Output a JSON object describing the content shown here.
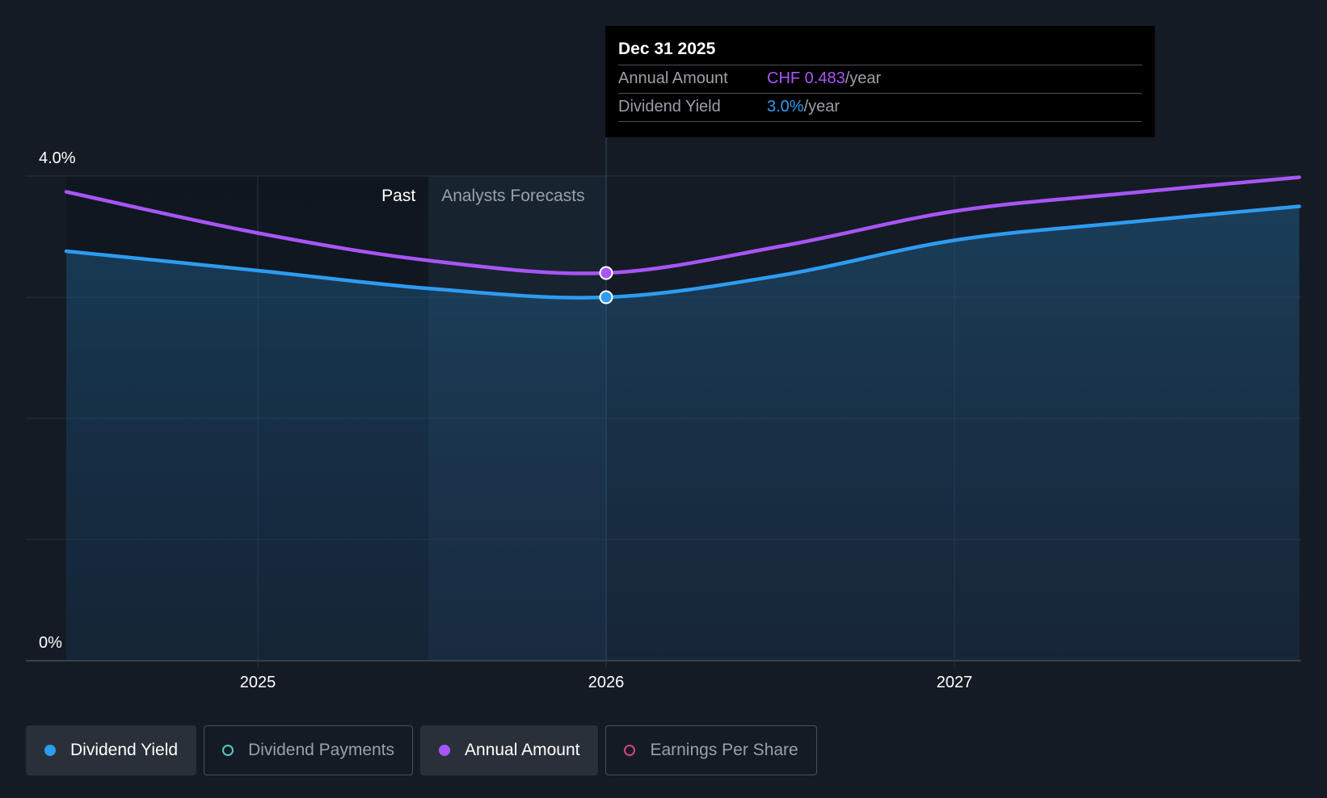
{
  "tooltip": {
    "date": "Dec 31 2025",
    "rows": [
      {
        "label": "Annual Amount",
        "value": "CHF 0.483",
        "unit": "/year",
        "color": "#a855f7"
      },
      {
        "label": "Dividend Yield",
        "value": "3.0%",
        "unit": "/year",
        "color": "#2d9cf0"
      }
    ]
  },
  "regions": {
    "past_label": "Past",
    "forecast_label": "Analysts Forecasts"
  },
  "legend": [
    {
      "label": "Dividend Yield",
      "active": true,
      "color": "#2d9cf0",
      "filled": true
    },
    {
      "label": "Dividend Payments",
      "active": false,
      "color": "#4ecdc4",
      "filled": false
    },
    {
      "label": "Annual Amount",
      "active": true,
      "color": "#a855f7",
      "filled": true
    },
    {
      "label": "Earnings Per Share",
      "active": false,
      "color": "#d1477a",
      "filled": false
    }
  ],
  "chart_data": {
    "type": "line",
    "x_ticks": [
      "2025",
      "2026",
      "2027"
    ],
    "y_ticks": [
      "0%",
      "4.0%"
    ],
    "ylim": [
      0,
      4.0
    ],
    "grid": true,
    "highlight_date": "Dec 31 2025",
    "series": [
      {
        "name": "Dividend Yield",
        "color": "#2d9cf0",
        "points": [
          [
            2024.45,
            3.38
          ],
          [
            2025.0,
            3.22
          ],
          [
            2025.5,
            3.07
          ],
          [
            2026.0,
            3.0
          ],
          [
            2026.5,
            3.18
          ],
          [
            2027.0,
            3.47
          ],
          [
            2027.5,
            3.62
          ],
          [
            2027.99,
            3.75
          ]
        ]
      },
      {
        "name": "Annual Amount",
        "color": "#a855f7",
        "points": [
          [
            2024.45,
            3.87
          ],
          [
            2025.0,
            3.53
          ],
          [
            2025.5,
            3.3
          ],
          [
            2026.0,
            3.2
          ],
          [
            2026.5,
            3.42
          ],
          [
            2027.0,
            3.71
          ],
          [
            2027.5,
            3.86
          ],
          [
            2027.99,
            3.99
          ]
        ]
      }
    ]
  }
}
